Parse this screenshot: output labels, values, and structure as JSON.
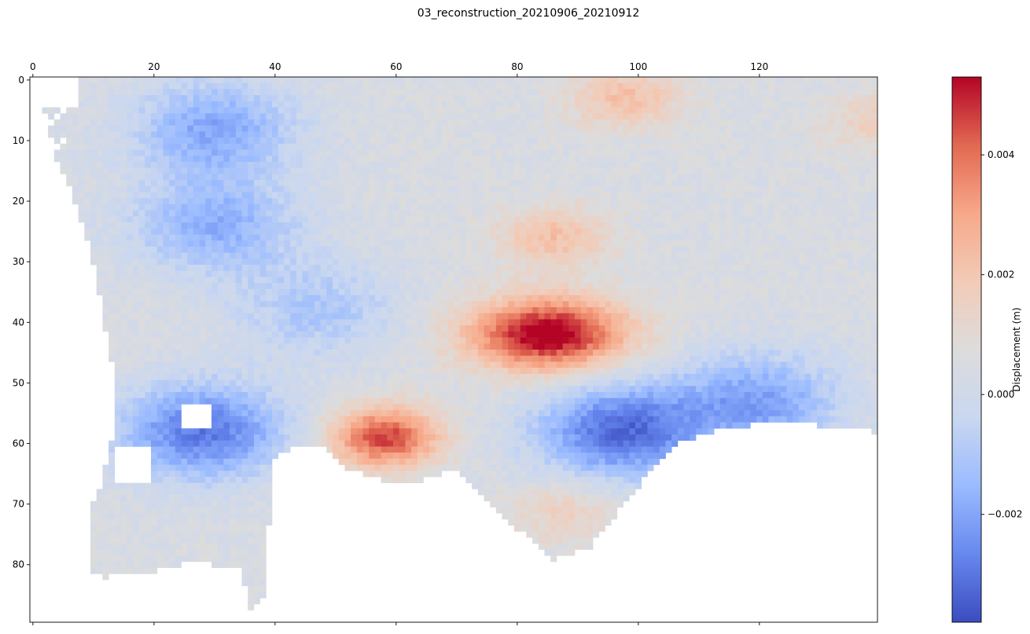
{
  "chart_data": {
    "type": "heatmap",
    "title": "03_reconstruction_20210906_20210912",
    "colorbar_label": "Displacement (m)",
    "colormap": "coolwarm",
    "colormap_stops": [
      "#3b4cc0",
      "#6788ee",
      "#9abbff",
      "#c9d7f0",
      "#dddcdc",
      "#f2cbb7",
      "#f7a889",
      "#e26952",
      "#b40426"
    ],
    "value_range": [
      -0.0038,
      0.0053
    ],
    "nodata_color": "#ffffff",
    "grid": false,
    "x_axis": {
      "position": "top",
      "ticks": [
        0,
        20,
        40,
        60,
        80,
        100,
        120
      ],
      "tick_labels": [
        "0",
        "20",
        "40",
        "60",
        "80",
        "100",
        "120"
      ],
      "range": [
        -0.5,
        139.5
      ]
    },
    "y_axis": {
      "inverted": true,
      "ticks": [
        0,
        10,
        20,
        30,
        40,
        50,
        60,
        70,
        80
      ],
      "tick_labels": [
        "0",
        "10",
        "20",
        "30",
        "40",
        "50",
        "60",
        "70",
        "80"
      ],
      "range": [
        89.5,
        -0.5
      ]
    },
    "colorbar": {
      "ticks": [
        -0.002,
        0.0,
        0.002,
        0.004
      ],
      "tick_labels": [
        "−0.002",
        "0.000",
        "0.002",
        "0.004"
      ]
    },
    "grid_shape": [
      90,
      140
    ],
    "features": [
      {
        "name": "uplift-center",
        "col": 85,
        "row": 42,
        "value": 0.0053
      },
      {
        "name": "uplift-west",
        "col": 58,
        "row": 59,
        "value": 0.0042
      },
      {
        "name": "uplift-northeast",
        "col": 98,
        "row": 3,
        "value": 0.0018
      },
      {
        "name": "uplift-east",
        "col": 140,
        "row": 7,
        "value": 0.0012
      },
      {
        "name": "uplift-northwest",
        "col": 86,
        "row": 26,
        "value": 0.0018
      },
      {
        "name": "uplift-south",
        "col": 88,
        "row": 71,
        "value": 0.0012
      },
      {
        "name": "subsidence-east",
        "col": 97,
        "row": 58,
        "value": -0.0036
      },
      {
        "name": "subsidence-west",
        "col": 28,
        "row": 58,
        "value": -0.0034
      },
      {
        "name": "subsidence-north",
        "col": 30,
        "row": 8,
        "value": -0.0024
      },
      {
        "name": "subsidence-left",
        "col": 30,
        "row": 24,
        "value": -0.0022
      },
      {
        "name": "subsidence-mid",
        "col": 47,
        "row": 38,
        "value": -0.0015
      },
      {
        "name": "subsidence-far-east",
        "col": 120,
        "row": 53,
        "value": -0.0025
      }
    ]
  }
}
